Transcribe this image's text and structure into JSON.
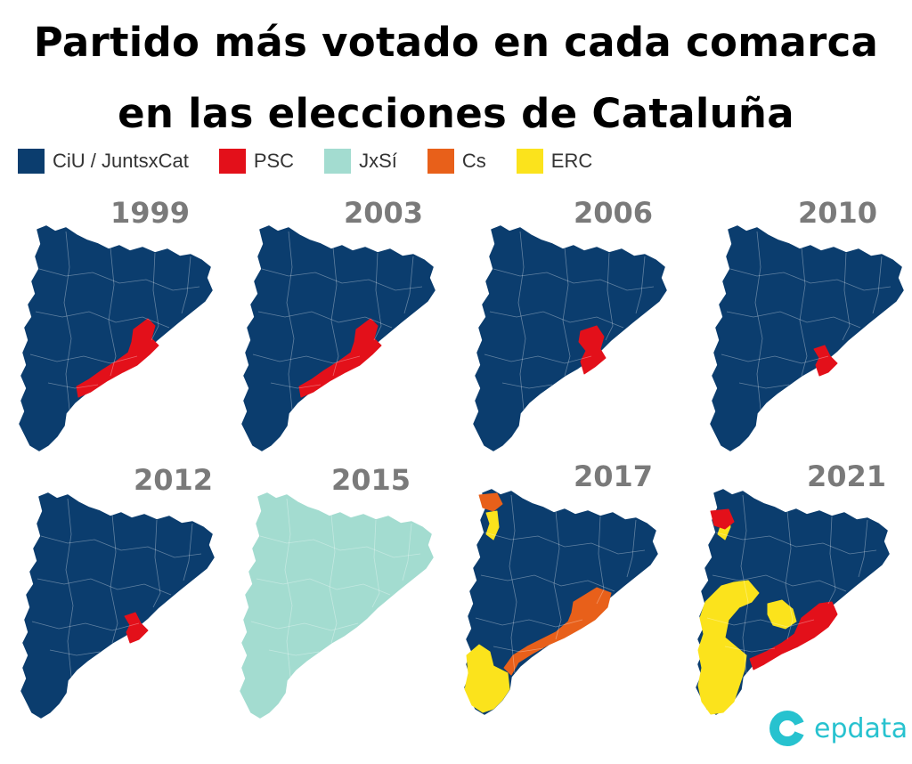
{
  "title": {
    "line1": "Partido más votado en cada comarca",
    "line2": "en las elecciones de Cataluña"
  },
  "legend": [
    {
      "label": "CiU / JuntsxCat",
      "color": "#0b3d6e"
    },
    {
      "label": "PSC",
      "color": "#e3101a"
    },
    {
      "label": "JxSí",
      "color": "#a3dcd0"
    },
    {
      "label": "Cs",
      "color": "#e8601a"
    },
    {
      "label": "ERC",
      "color": "#fbe31c"
    }
  ],
  "maps": [
    {
      "year": "1999",
      "base": "#0b3d6e",
      "overlays": [
        {
          "shape": "psc-wide",
          "color": "#e3101a"
        }
      ]
    },
    {
      "year": "2003",
      "base": "#0b3d6e",
      "overlays": [
        {
          "shape": "psc-wide",
          "color": "#e3101a"
        }
      ]
    },
    {
      "year": "2006",
      "base": "#0b3d6e",
      "overlays": [
        {
          "shape": "psc-mid",
          "color": "#e3101a"
        }
      ]
    },
    {
      "year": "2010",
      "base": "#0b3d6e",
      "overlays": [
        {
          "shape": "psc-small",
          "color": "#e3101a"
        }
      ]
    },
    {
      "year": "2012",
      "base": "#0b3d6e",
      "overlays": [
        {
          "shape": "psc-small",
          "color": "#e3101a"
        }
      ]
    },
    {
      "year": "2015",
      "base": "#a3dcd0",
      "overlays": []
    },
    {
      "year": "2017",
      "base": "#0b3d6e",
      "overlays": [
        {
          "shape": "cs-coast",
          "color": "#e8601a"
        },
        {
          "shape": "cs-aran",
          "color": "#e8601a"
        },
        {
          "shape": "erc-south",
          "color": "#fbe31c"
        },
        {
          "shape": "erc-north",
          "color": "#fbe31c"
        }
      ]
    },
    {
      "year": "2021",
      "base": "#0b3d6e",
      "overlays": [
        {
          "shape": "erc-west",
          "color": "#fbe31c"
        },
        {
          "shape": "erc-center",
          "color": "#fbe31c"
        },
        {
          "shape": "erc-north",
          "color": "#fbe31c"
        },
        {
          "shape": "psc-coast",
          "color": "#e3101a"
        },
        {
          "shape": "psc-aran",
          "color": "#e3101a"
        }
      ]
    }
  ],
  "logo": {
    "text": "epdata",
    "color": "#27c2cf"
  }
}
